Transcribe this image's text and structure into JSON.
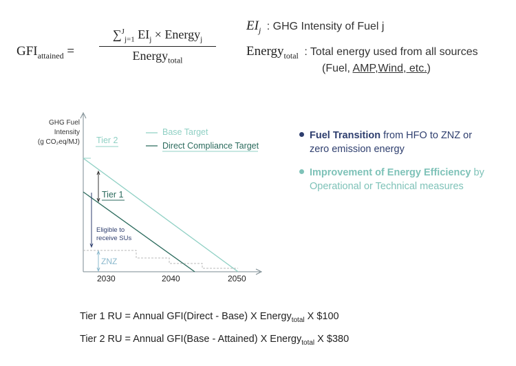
{
  "formula": {
    "lhs": "GFI",
    "lhs_sub": "attained",
    "equals": "=",
    "sum": "∑",
    "sum_upper": "J",
    "sum_lower": "j=1",
    "num_ei": "EI",
    "num_ei_sub": "j",
    "times": "×",
    "num_energy": "Energy",
    "num_energy_sub": "j",
    "den": "Energy",
    "den_sub": "total"
  },
  "definitions": [
    {
      "symbol": "EI",
      "symbol_sub": "j",
      "text": ": GHG Intensity of Fuel j"
    },
    {
      "symbol": "Energy",
      "symbol_sub": "total",
      "text": ": Total energy used from all sources",
      "text2_pre": "(Fuel, ",
      "text2_link": "AMP,Wind, etc.",
      "text2_post": ")"
    }
  ],
  "chart": {
    "y_label": [
      "GHG Fuel",
      "Intensity",
      "(g CO₂eq/MJ)"
    ],
    "x_ticks": [
      "2030",
      "2040",
      "2050"
    ],
    "legend": [
      {
        "label": "Base Target",
        "color": "#8fd0c4"
      },
      {
        "label": "Direct Compliance Target",
        "color": "#2a6a5c"
      }
    ],
    "annotations": {
      "tier2": "Tier 2",
      "tier1": "Tier 1",
      "eligible": [
        "Eligible to",
        "receive SUs"
      ],
      "znz": "ZNZ"
    }
  },
  "bullets": [
    {
      "strong": "Fuel Transition",
      "rest1": " from HFO to ZNZ or",
      "rest2": "zero emission energy",
      "color": "#2e3e6e"
    },
    {
      "strong": "Improvement of Energy Efficiency",
      "rest1": " by",
      "rest2": "Operational or Technical measures",
      "color": "#7ec2b8"
    }
  ],
  "equations": [
    {
      "prefix": "Tier 1 RU = Annual GFI(Direct - Base) X Energy",
      "sub": "total",
      "suffix": " X $100"
    },
    {
      "prefix": "Tier 2 RU = Annual GFI(Base - Attained) X Energy",
      "sub": "total",
      "suffix": " X $380"
    }
  ]
}
